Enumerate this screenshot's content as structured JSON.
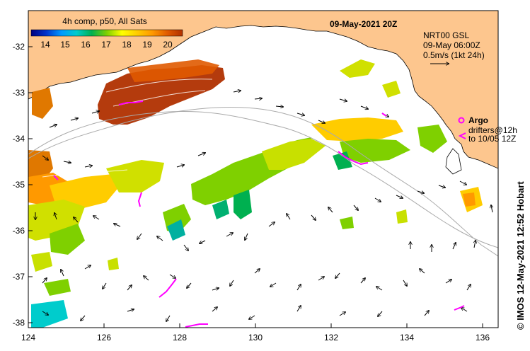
{
  "map": {
    "date_title": "09-May-2021 20Z",
    "legend": {
      "title": "4h comp, p50, All Sats",
      "ticks": [
        "14",
        "15",
        "16",
        "17",
        "18",
        "19",
        "20"
      ],
      "stops": [
        "#00007f",
        "#0033cc",
        "#0099ff",
        "#00cccc",
        "#00b050",
        "#7fd000",
        "#ffff00",
        "#ffcc00",
        "#ff9900",
        "#e05a00",
        "#b03000"
      ]
    },
    "current_info": {
      "line1": "NRT00 GSL",
      "line2": "09-May 06:00Z",
      "line3": "0.5m/s (1kt 24h)"
    },
    "argo_label": "Argo",
    "drifters_line1": "drifters@12h",
    "drifters_line2": "to 10/05 12Z",
    "credit": "© IMOS 12-May-2021 12:52 Hobart",
    "lon_ticks": [
      "124",
      "126",
      "128",
      "130",
      "132",
      "134",
      "136"
    ],
    "lat_ticks": [
      "-32",
      "-33",
      "-34",
      "-35",
      "-36",
      "-37",
      "-38"
    ],
    "colors": {
      "land": "#fdc68e",
      "drifter": "#ff00ff",
      "bathymetry": "#aaaaaa"
    }
  }
}
